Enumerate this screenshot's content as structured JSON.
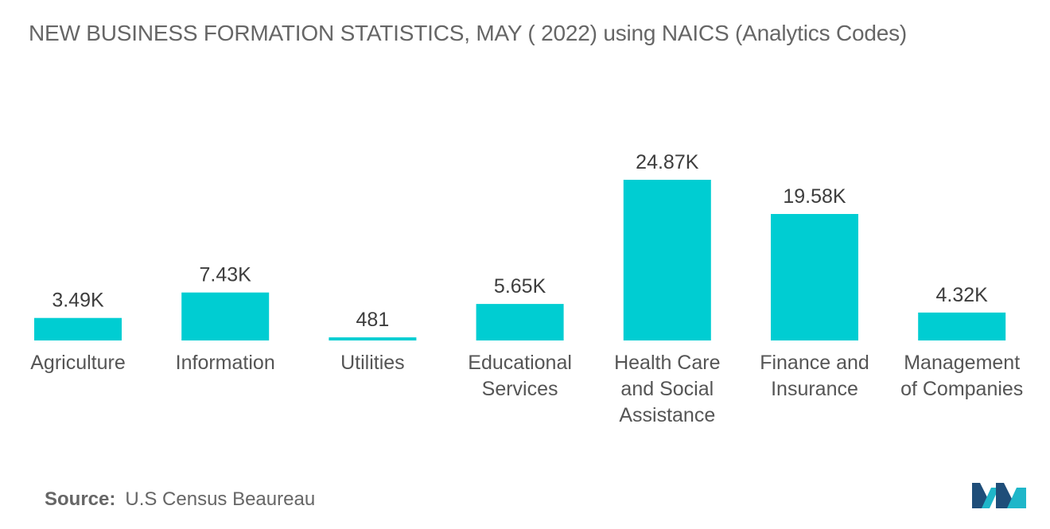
{
  "title": "NEW BUSINESS FORMATION STATISTICS, MAY ( 2022) using  NAICS (Analytics Codes)",
  "source": {
    "label": "Source:",
    "text": "U.S Census Beaureau"
  },
  "logo": {
    "icon": "mordor-logo-icon",
    "colors": [
      "#1f4e79",
      "#1fb6c9"
    ]
  },
  "colors": {
    "bar": "#00cdd2",
    "value_text": "#3d3d3d",
    "category_text": "#555555"
  },
  "chart_data": {
    "type": "bar",
    "title": "NEW BUSINESS FORMATION STATISTICS, MAY ( 2022) using  NAICS (Analytics Codes)",
    "xlabel": "",
    "ylabel": "",
    "grid": false,
    "legend": "none",
    "categories": [
      [
        "Agriculture"
      ],
      [
        "Information"
      ],
      [
        "Utilities"
      ],
      [
        "Educational",
        "Services"
      ],
      [
        "Health Care",
        "and Social",
        "Assistance"
      ],
      [
        "Finance and",
        "Insurance"
      ],
      [
        "Management",
        "of Companies"
      ]
    ],
    "values": [
      3490,
      7430,
      481,
      5650,
      24870,
      19580,
      4320
    ],
    "value_labels": [
      "3.49K",
      "7.43K",
      "481",
      "5.65K",
      "24.87K",
      "19.58K",
      "4.32K"
    ],
    "ylim": [
      0,
      24870
    ]
  }
}
